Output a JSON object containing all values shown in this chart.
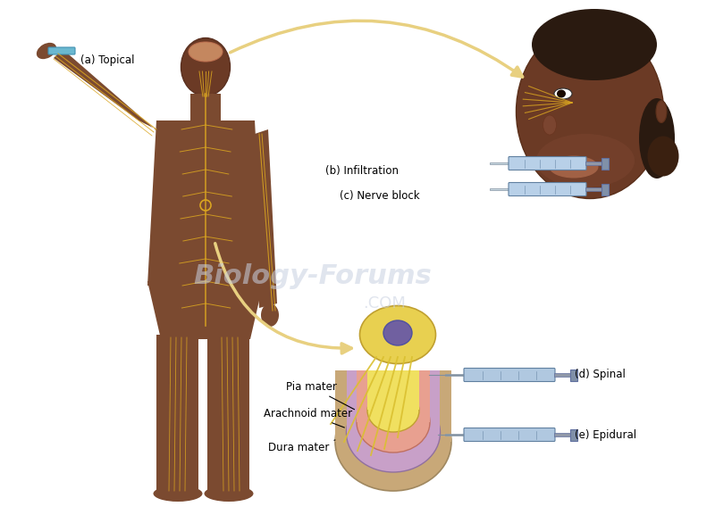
{
  "title": "",
  "bg_color": "#ffffff",
  "labels": {
    "topical": "(a) Topical",
    "infiltration": "(b) Infiltration",
    "nerve_block": "(c) Nerve block",
    "spinal": "(d) Spinal",
    "epidural": "(e) Epidural",
    "pia_mater": "Pia mater",
    "arachnoid_mater": "Arachnoid mater",
    "dura_mater": "Dura mater",
    "watermark": "Biology-Forums",
    "watermark2": ".COM"
  },
  "colors": {
    "skin_dark": "#6B3A2A",
    "skin_medium": "#8B4513",
    "nerve_yellow": "#DAA520",
    "nerve_gold": "#FFD700",
    "spine_yellow": "#F0D060",
    "pia_pink": "#E8A090",
    "arachnoid_purple": "#C8A0C8",
    "dura_tan": "#C8A878",
    "syringe_blue": "#A0C0D8",
    "syringe_gray": "#B0B8C0",
    "arrow_yellow": "#E8D080",
    "topical_blue": "#6BB8D0",
    "topical_yellow": "#DAA520",
    "brain_color": "#D4956A",
    "watermark_color": "#C8D0E0"
  },
  "figsize": [
    8.0,
    5.77
  ],
  "dpi": 100
}
